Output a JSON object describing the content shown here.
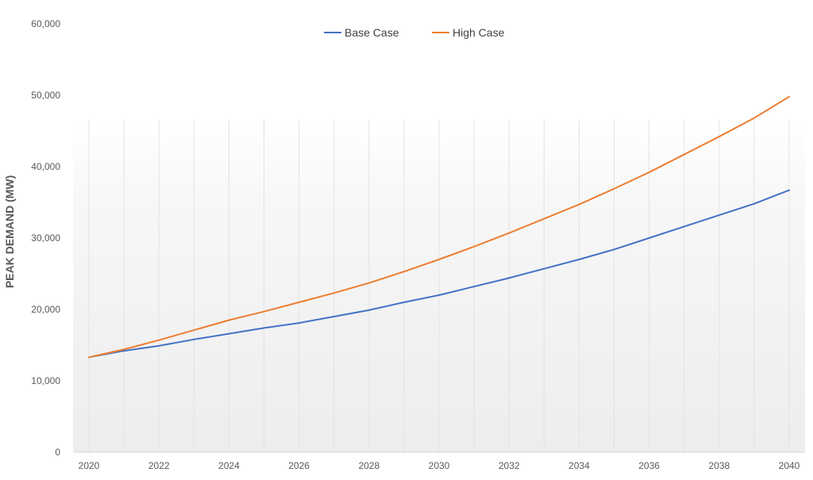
{
  "chart_data": {
    "type": "line",
    "title": "",
    "xlabel": "",
    "ylabel": "PEAK DEMAND (MW)",
    "ylim": [
      0,
      60000
    ],
    "y_ticks": [
      "0",
      "10,000",
      "20,000",
      "30,000",
      "40,000",
      "50,000",
      "60,000"
    ],
    "x_ticks": [
      "2020",
      "2022",
      "2024",
      "2026",
      "2028",
      "2030",
      "2032",
      "2034",
      "2036",
      "2038",
      "2040"
    ],
    "x": [
      2020,
      2021,
      2022,
      2023,
      2024,
      2025,
      2026,
      2027,
      2028,
      2029,
      2030,
      2031,
      2032,
      2033,
      2034,
      2035,
      2036,
      2037,
      2038,
      2039,
      2040
    ],
    "legend_position": "top-center",
    "series": [
      {
        "name": "Base Case",
        "color": "#4472C4",
        "values": [
          13300,
          14200,
          14900,
          15800,
          16600,
          17400,
          18100,
          19000,
          19900,
          21000,
          22000,
          23200,
          24400,
          25700,
          27000,
          28400,
          30000,
          31600,
          33200,
          34800,
          36700
        ]
      },
      {
        "name": "High Case",
        "color": "#ED7D31",
        "values": [
          13300,
          14400,
          15700,
          17100,
          18500,
          19700,
          21000,
          22300,
          23700,
          25300,
          27000,
          28800,
          30700,
          32700,
          34700,
          36900,
          39200,
          41700,
          44200,
          46800,
          49800
        ]
      }
    ]
  }
}
